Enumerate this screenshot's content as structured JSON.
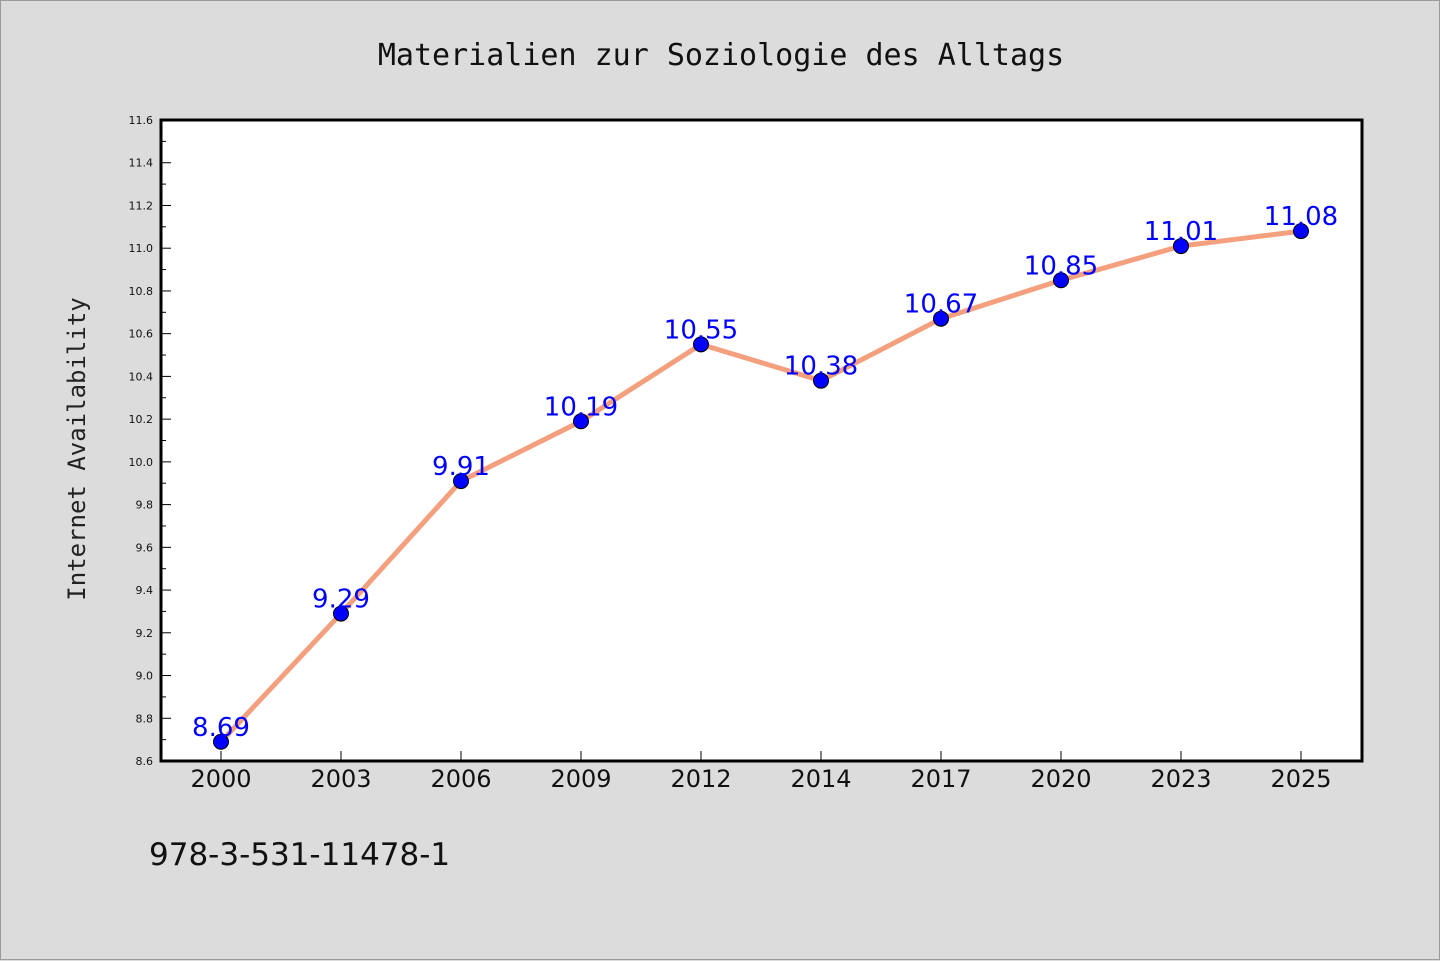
{
  "chart_data": {
    "type": "line",
    "title": "Materialien zur Soziologie des Alltags",
    "xlabel": "",
    "ylabel": "Internet Availability",
    "categories": [
      "2000",
      "2003",
      "2006",
      "2009",
      "2012",
      "2014",
      "2017",
      "2020",
      "2023",
      "2025"
    ],
    "series": [
      {
        "values": [
          8.69,
          9.29,
          9.91,
          10.19,
          10.55,
          10.38,
          10.67,
          10.85,
          11.01,
          11.08
        ],
        "data_labels": [
          "8.69",
          "9.29",
          "9.91",
          "10.19",
          "10.55",
          "10.38",
          "10.67",
          "10.85",
          "11.01",
          "11.08"
        ],
        "line_color": "#f4a07e",
        "marker_color": "#0000ff",
        "label_color": "#0000ff"
      }
    ],
    "ylim": [
      8.6,
      11.6
    ],
    "yticks": [
      "8.6",
      "8.8",
      "9.0",
      "9.2",
      "9.4",
      "9.6",
      "9.8",
      "10.0",
      "10.2",
      "10.4",
      "10.6",
      "10.8",
      "11.0",
      "11.2",
      "11.4",
      "11.6"
    ],
    "grid": false,
    "legend": "none"
  },
  "footer": {
    "text": "978-3-531-11478-1"
  },
  "colors": {
    "background": "#dcdcdc",
    "plot_area": "#ffffff",
    "axis": "#000000"
  }
}
